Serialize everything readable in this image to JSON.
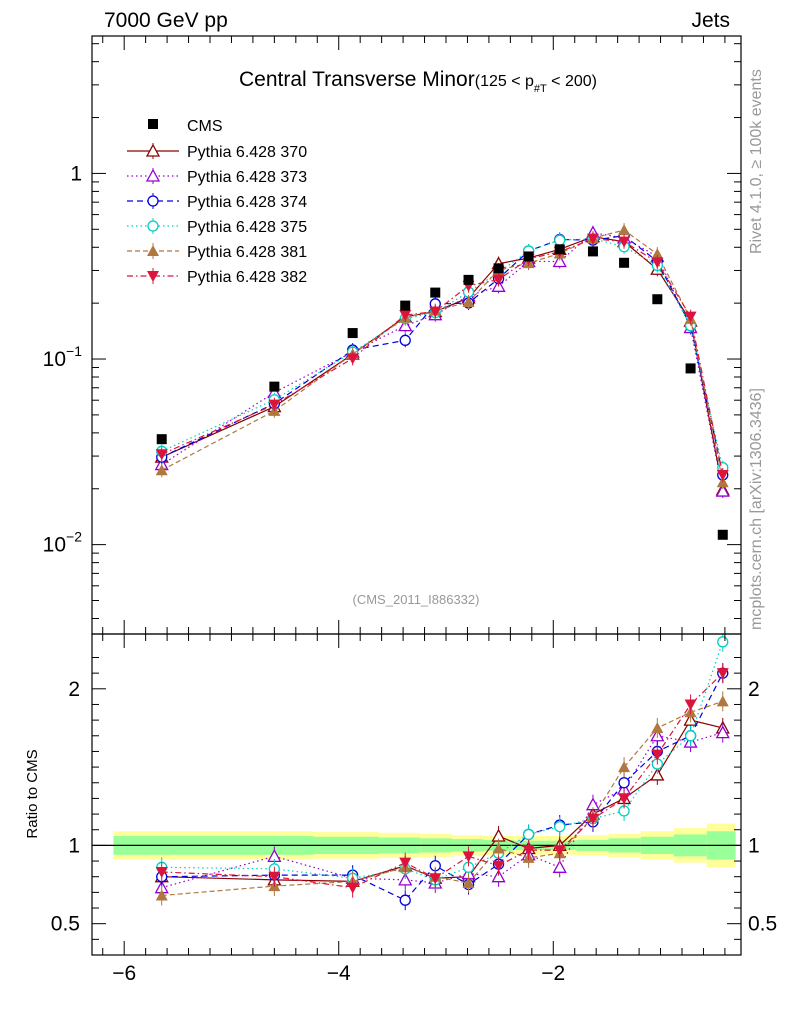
{
  "header": {
    "energy_label": "7000 GeV pp",
    "process_label": "Jets"
  },
  "side_labels": {
    "rivet": "Rivet 4.1.0, ≥ 100k events",
    "mcplots": "mcplots.cern.ch [arXiv:1306.3436]"
  },
  "chart_data": {
    "type": "line",
    "title": "Central Transverse Minor",
    "title_cut": "(125 < p",
    "title_sub": "#T",
    "title_cut_end": " < 200)",
    "watermark": "(CMS_2011_I886332)",
    "ratio_ylabel": "Ratio to CMS",
    "xlim": [
      -6.3,
      -0.25
    ],
    "ylim": [
      0.0033,
      5.5
    ],
    "yscale": "log",
    "ratio_ylim": [
      0.3,
      2.35
    ],
    "x_ticks": [
      -6,
      -4,
      -2
    ],
    "x_tick_labels": [
      "−6",
      "−4",
      "−2"
    ],
    "y_ticks": [
      1,
      0.1,
      0.01
    ],
    "y_tick_labels": [
      {
        "base": "1",
        "exp": ""
      },
      {
        "base": "10",
        "exp": "−1"
      },
      {
        "base": "10",
        "exp": "−2"
      }
    ],
    "ratio_ticks": [
      2,
      1,
      0.5
    ],
    "ratio_tick_labels": [
      "2",
      "1",
      "0.5"
    ],
    "x": [
      -5.65,
      -4.6,
      -3.87,
      -3.38,
      -3.1,
      -2.79,
      -2.51,
      -2.23,
      -1.94,
      -1.63,
      -1.34,
      -1.03,
      -0.72,
      -0.42
    ],
    "ref": {
      "name": "CMS",
      "values": [
        0.037,
        0.071,
        0.138,
        0.194,
        0.228,
        0.267,
        0.308,
        0.357,
        0.39,
        0.38,
        0.33,
        0.21,
        0.089,
        0.0113
      ],
      "band_inner": [
        0.06,
        0.06,
        0.055,
        0.05,
        0.045,
        0.04,
        0.035,
        0.03,
        0.03,
        0.035,
        0.045,
        0.055,
        0.07,
        0.09
      ],
      "band_outer": [
        0.09,
        0.09,
        0.085,
        0.08,
        0.075,
        0.065,
        0.06,
        0.06,
        0.06,
        0.065,
        0.075,
        0.09,
        0.11,
        0.14
      ]
    },
    "series": [
      {
        "name": "Pythia 6.428 370",
        "color": "#8b0000",
        "dash": "",
        "marker": "tri-up-open",
        "ratio": [
          0.8,
          0.78,
          0.77,
          0.87,
          0.79,
          0.8,
          1.06,
          0.98,
          1.0,
          1.2,
          1.3,
          1.45,
          1.8,
          1.75
        ]
      },
      {
        "name": "Pythia 6.428 373",
        "color": "#9400d3",
        "dash": "1.5,3",
        "marker": "tri-up-open",
        "ratio": [
          0.73,
          0.93,
          0.79,
          0.78,
          0.76,
          0.82,
          0.8,
          0.94,
          0.86,
          1.26,
          1.36,
          1.7,
          1.66,
          1.72
        ]
      },
      {
        "name": "Pythia 6.428 374",
        "color": "#0000e0",
        "dash": "6,4",
        "marker": "circle-open",
        "ratio": [
          0.8,
          0.81,
          0.81,
          0.65,
          0.87,
          0.75,
          0.88,
          1.07,
          1.13,
          1.15,
          1.4,
          1.6,
          1.7,
          2.1
        ]
      },
      {
        "name": "Pythia 6.428 375",
        "color": "#00d0c0",
        "dash": "1.5,3",
        "marker": "circle-open",
        "ratio": [
          0.86,
          0.85,
          0.79,
          0.85,
          0.78,
          0.86,
          0.95,
          1.07,
          1.12,
          1.17,
          1.22,
          1.52,
          1.7,
          2.3
        ]
      },
      {
        "name": "Pythia 6.428 381",
        "color": "#b07840",
        "dash": "5,3",
        "marker": "tri-up-filled",
        "ratio": [
          0.68,
          0.74,
          0.77,
          0.86,
          0.8,
          0.76,
          0.98,
          0.92,
          0.95,
          1.18,
          1.5,
          1.75,
          1.85,
          1.92
        ]
      },
      {
        "name": "Pythia 6.428 382",
        "color": "#dc143c",
        "dash": "6,3,1.5,3",
        "marker": "tri-down-filled",
        "ratio": [
          0.83,
          0.8,
          0.73,
          0.89,
          0.79,
          0.93,
          0.87,
          0.97,
          0.97,
          1.17,
          1.3,
          1.58,
          1.9,
          2.1
        ]
      }
    ]
  }
}
